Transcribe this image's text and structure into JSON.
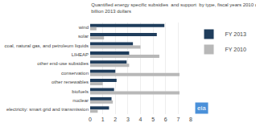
{
  "chart_data": {
    "type": "bar",
    "orientation": "horizontal",
    "title": "Quantified energy specific subsidies  and support  by type, fiscal years 2010 and 2013",
    "subtitle": "billion 2013 dollars",
    "categories": [
      "wind",
      "solar",
      "coal, natural gas, and petroleum liquids",
      "LIHEAP",
      "other end-use subsidies",
      "conservation",
      "other renewables",
      "biofuels",
      "nuclear",
      "electricity: smart grid and transmission"
    ],
    "series": [
      {
        "name": "FY 2013",
        "color": "#1f3d5c",
        "values": [
          5.9,
          5.3,
          3.4,
          3.1,
          2.9,
          2.0,
          2.1,
          1.9,
          1.7,
          1.5
        ]
      },
      {
        "name": "FY 2010",
        "color": "#b8b8b8",
        "values": [
          0.5,
          1.1,
          4.0,
          5.5,
          3.1,
          7.1,
          1.0,
          7.1,
          1.8,
          0.6
        ]
      }
    ],
    "xlim": [
      0,
      8
    ],
    "xticks": [
      0,
      1,
      2,
      3,
      4,
      5,
      6,
      7,
      8
    ],
    "grid": true,
    "legend": "upper right",
    "annotations": [
      "eia"
    ]
  }
}
